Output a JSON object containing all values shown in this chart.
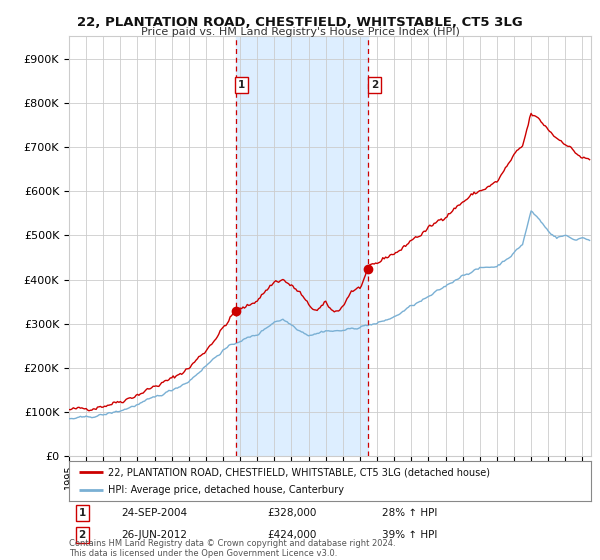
{
  "title": "22, PLANTATION ROAD, CHESTFIELD, WHITSTABLE, CT5 3LG",
  "subtitle": "Price paid vs. HM Land Registry's House Price Index (HPI)",
  "ylabel_ticks": [
    "£0",
    "£100K",
    "£200K",
    "£300K",
    "£400K",
    "£500K",
    "£600K",
    "£700K",
    "£800K",
    "£900K"
  ],
  "ytick_values": [
    0,
    100000,
    200000,
    300000,
    400000,
    500000,
    600000,
    700000,
    800000,
    900000
  ],
  "ylim": [
    0,
    950000
  ],
  "xlim_start": 1995.0,
  "xlim_end": 2025.5,
  "sale1_x": 2004.73,
  "sale1_y": 328000,
  "sale1_label": "1",
  "sale1_date": "24-SEP-2004",
  "sale1_price": "£328,000",
  "sale1_hpi": "28% ↑ HPI",
  "sale2_x": 2012.49,
  "sale2_y": 424000,
  "sale2_label": "2",
  "sale2_date": "26-JUN-2012",
  "sale2_price": "£424,000",
  "sale2_hpi": "39% ↑ HPI",
  "line_color_property": "#cc0000",
  "line_color_hpi": "#7ab0d4",
  "shade_color": "#ddeeff",
  "vline_color": "#cc0000",
  "legend_label_property": "22, PLANTATION ROAD, CHESTFIELD, WHITSTABLE, CT5 3LG (detached house)",
  "legend_label_hpi": "HPI: Average price, detached house, Canterbury",
  "footer": "Contains HM Land Registry data © Crown copyright and database right 2024.\nThis data is licensed under the Open Government Licence v3.0.",
  "background_color": "#ffffff",
  "grid_color": "#cccccc"
}
